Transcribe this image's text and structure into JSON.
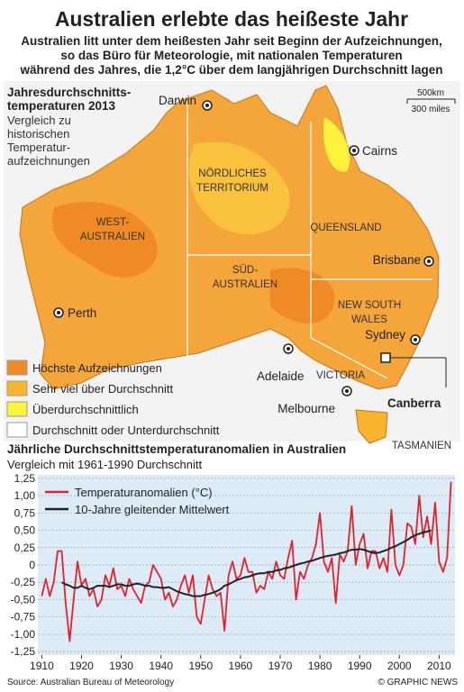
{
  "header": {
    "title": "Australien erlebte das heißeste Jahr",
    "subtitle": [
      "Australien litt unter dem heißesten Jahr seit Beginn der Aufzeichnungen,",
      "so das Büro für Meteorologie, mit nationalen Temperaturen",
      "während des Jahres, die 1,2°C über dem langjährigen Durchschnitt lagen"
    ]
  },
  "map": {
    "title": [
      "Jahresdurchschnitts-",
      "temperaturen 2013"
    ],
    "subtitle": [
      "Vergleich zu",
      "historischen",
      "Temperatur-",
      "aufzeichnungen"
    ],
    "scale": [
      "500km",
      "300 miles"
    ],
    "regions": [
      [
        "WEST-",
        "AUSTRALIEN"
      ],
      [
        "NÖRDLICHES",
        "TERRITORIUM"
      ],
      [
        "QUEENSLAND"
      ],
      [
        "SÜD-",
        "AUSTRALIEN"
      ],
      [
        "NEW SOUTH",
        "WALES"
      ],
      [
        "VICTORIA"
      ],
      [
        "TASMANIEN"
      ]
    ],
    "cities": [
      "Darwin",
      "Cairns",
      "Brisbane",
      "Sydney",
      "Canberra",
      "Melbourne",
      "Adelaide",
      "Perth"
    ],
    "legend": [
      {
        "label": "Höchste Aufzeichnungen",
        "color": "#f08a24"
      },
      {
        "label": "Sehr viel über Durchschnitt",
        "color": "#f9b52e"
      },
      {
        "label": "Überdurchschnittlich",
        "color": "#fff23a"
      },
      {
        "label": "Durchschnitt oder Unterdurchschnitt",
        "color": "#ffffff"
      }
    ]
  },
  "chart_data": {
    "type": "line",
    "title": "Jährliche Durchschnittstemperaturanomalien in Australien",
    "subtitle": "Vergleich mit 1961-1990 Durchschnitt",
    "x": [
      1910,
      1911,
      1912,
      1913,
      1914,
      1915,
      1916,
      1917,
      1918,
      1919,
      1920,
      1921,
      1922,
      1923,
      1924,
      1925,
      1926,
      1927,
      1928,
      1929,
      1930,
      1931,
      1932,
      1933,
      1934,
      1935,
      1936,
      1937,
      1938,
      1939,
      1940,
      1941,
      1942,
      1943,
      1944,
      1945,
      1946,
      1947,
      1948,
      1949,
      1950,
      1951,
      1952,
      1953,
      1954,
      1955,
      1956,
      1957,
      1958,
      1959,
      1960,
      1961,
      1962,
      1963,
      1964,
      1965,
      1966,
      1967,
      1968,
      1969,
      1970,
      1971,
      1972,
      1973,
      1974,
      1975,
      1976,
      1977,
      1978,
      1979,
      1980,
      1981,
      1982,
      1983,
      1984,
      1985,
      1986,
      1987,
      1988,
      1989,
      1990,
      1991,
      1992,
      1993,
      1994,
      1995,
      1996,
      1997,
      1998,
      1999,
      2000,
      2001,
      2002,
      2003,
      2004,
      2005,
      2006,
      2007,
      2008,
      2009,
      2010,
      2011,
      2012,
      2013
    ],
    "series": [
      {
        "name": "Temperaturanomalien (°C)",
        "color": "#e0232b",
        "values": [
          -0.45,
          -0.2,
          -0.45,
          -0.25,
          0.2,
          0.2,
          -0.55,
          -1.1,
          -0.5,
          0.05,
          -0.3,
          -0.2,
          -0.45,
          -0.35,
          -0.6,
          -0.5,
          -0.15,
          -0.3,
          -0.05,
          -0.35,
          -0.3,
          -0.45,
          -0.2,
          -0.35,
          -0.45,
          -0.55,
          -0.3,
          -0.25,
          0.0,
          -0.1,
          -0.2,
          -0.5,
          -0.4,
          -0.6,
          -0.5,
          -0.3,
          -0.15,
          -0.4,
          -0.15,
          -0.75,
          -0.85,
          -0.5,
          -0.15,
          -0.35,
          -0.45,
          -0.4,
          -0.95,
          -0.15,
          0.05,
          -0.2,
          -0.15,
          0.1,
          -0.1,
          -0.1,
          -0.4,
          -0.3,
          -0.35,
          -0.1,
          -0.2,
          0.05,
          -0.15,
          -0.2,
          0.1,
          0.35,
          -0.5,
          -0.1,
          -0.2,
          0.0,
          0.1,
          0.3,
          0.75,
          0.05,
          -0.1,
          0.1,
          -0.55,
          0.15,
          0.05,
          0.2,
          0.85,
          0.0,
          0.3,
          0.45,
          -0.05,
          0.2,
          0.2,
          -0.05,
          0.1,
          -0.1,
          0.8,
          0.0,
          -0.15,
          0.0,
          0.6,
          0.55,
          0.3,
          1.0,
          0.4,
          0.7,
          0.3,
          0.9,
          0.05,
          -0.1,
          0.1,
          1.2
        ]
      },
      {
        "name": "10-Jahre gleitender Mittelwert",
        "color": "#222222",
        "values": [
          null,
          null,
          null,
          null,
          null,
          -0.25,
          -0.28,
          -0.3,
          -0.33,
          -0.33,
          -0.3,
          -0.33,
          -0.35,
          -0.33,
          -0.3,
          -0.3,
          -0.3,
          -0.32,
          -0.3,
          -0.28,
          -0.28,
          -0.3,
          -0.3,
          -0.28,
          -0.27,
          -0.28,
          -0.3,
          -0.3,
          -0.32,
          -0.32,
          -0.33,
          -0.33,
          -0.32,
          -0.35,
          -0.38,
          -0.4,
          -0.42,
          -0.43,
          -0.45,
          -0.45,
          -0.45,
          -0.43,
          -0.42,
          -0.4,
          -0.38,
          -0.35,
          -0.3,
          -0.28,
          -0.25,
          -0.22,
          -0.2,
          -0.18,
          -0.17,
          -0.15,
          -0.13,
          -0.12,
          -0.12,
          -0.1,
          -0.1,
          -0.08,
          -0.07,
          -0.05,
          -0.04,
          -0.02,
          0.0,
          0.02,
          0.03,
          0.05,
          0.06,
          0.08,
          0.1,
          0.12,
          0.13,
          0.14,
          0.15,
          0.17,
          0.18,
          0.2,
          0.22,
          0.22,
          0.23,
          0.22,
          0.2,
          0.18,
          0.17,
          0.18,
          0.2,
          0.22,
          0.25,
          0.27,
          0.3,
          0.33,
          0.36,
          0.4,
          0.43,
          0.45,
          0.47,
          0.48,
          0.5,
          null,
          null,
          null,
          null,
          null
        ]
      }
    ],
    "xlim": [
      1909,
      2014
    ],
    "ylim": [
      -1.3,
      1.3
    ],
    "xticks": [
      1910,
      1920,
      1930,
      1940,
      1950,
      1960,
      1970,
      1980,
      1990,
      2000,
      2010
    ],
    "yticks": [
      {
        "value": 1.25,
        "label": "1,25"
      },
      {
        "value": 1.0,
        "label": "1,00"
      },
      {
        "value": 0.75,
        "label": "0,75"
      },
      {
        "value": 0.5,
        "label": "0,50"
      },
      {
        "value": 0.25,
        "label": "0,25"
      },
      {
        "value": 0,
        "label": "0"
      },
      {
        "value": -0.25,
        "label": "-0,25"
      },
      {
        "value": -0.5,
        "label": "-0,50"
      },
      {
        "value": -0.75,
        "label": "-0,75"
      },
      {
        "value": -1.0,
        "label": "-1,00"
      },
      {
        "value": -1.25,
        "label": "-1,25"
      }
    ],
    "grid": true,
    "legend": "upper left"
  },
  "footer": {
    "source": "Source: Australian Bureau of Meteorology",
    "credit": "© GRAPHIC NEWS"
  }
}
